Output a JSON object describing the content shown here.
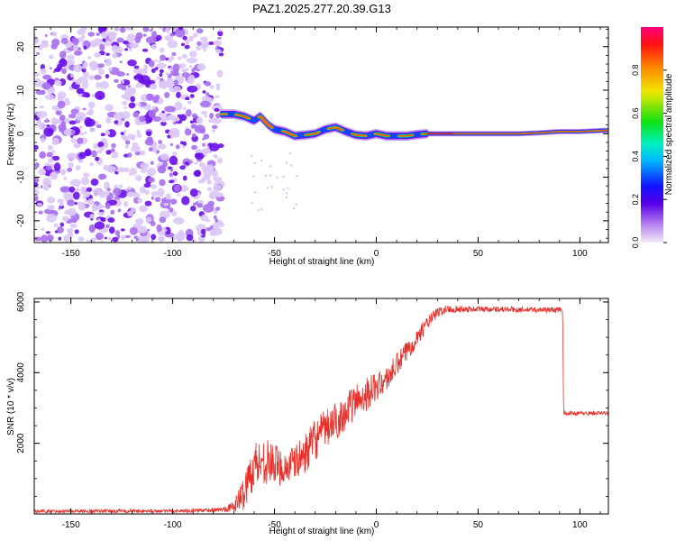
{
  "title": "PAZ1.2025.277.20.39.G13",
  "colors": {
    "snr_line": "#e8302a",
    "axis": "#000000"
  },
  "chart_data": [
    {
      "type": "heatmap",
      "name": "spectrogram",
      "xlabel": "Height of straight line (km)",
      "ylabel": "Frequency (Hz)",
      "xlim": [
        -168,
        114
      ],
      "ylim": [
        -25,
        24.5
      ],
      "xticks": [
        -150,
        -100,
        -50,
        0,
        50,
        100
      ],
      "yticks": [
        -20,
        -10,
        0,
        10,
        20
      ],
      "noise_region_x": [
        -168,
        -76
      ],
      "signal_track": {
        "x": [
          -76,
          -70,
          -65,
          -60,
          -57,
          -53,
          -50,
          -45,
          -40,
          -35,
          -30,
          -25,
          -20,
          -15,
          -10,
          -5,
          0,
          5,
          10,
          15,
          20,
          25,
          30,
          40,
          50,
          60,
          70,
          80,
          90,
          100,
          114
        ],
        "freq": [
          4.5,
          4.5,
          4.0,
          3.0,
          4.0,
          2.0,
          1.0,
          0.5,
          -0.5,
          -0.3,
          0.0,
          1.0,
          1.5,
          0.5,
          -0.3,
          -0.5,
          0.0,
          -0.5,
          -0.5,
          -0.5,
          -0.2,
          0.0,
          0.0,
          0.0,
          0.0,
          0.0,
          0.0,
          0.2,
          0.5,
          0.5,
          0.8
        ]
      },
      "colorbar": {
        "label": "Normalized spectral amplitude",
        "range": [
          0,
          1
        ],
        "ticks": [
          "0.0",
          "0.2",
          "0.4",
          "0.6",
          "0.8"
        ]
      }
    },
    {
      "type": "line",
      "name": "snr",
      "xlabel": "Height of straight line (km)",
      "ylabel": "SNR (10 * v/v)",
      "xlim": [
        -168,
        114
      ],
      "ylim": [
        0,
        6100
      ],
      "xticks": [
        -150,
        -100,
        -50,
        0,
        50,
        100
      ],
      "yticks": [
        2000,
        4000,
        6000
      ],
      "series": [
        {
          "name": "SNR",
          "x": [
            -168,
            -100,
            -76,
            -70,
            -65,
            -60,
            -55,
            -50,
            -45,
            -40,
            -35,
            -30,
            -25,
            -20,
            -15,
            -10,
            -5,
            0,
            5,
            10,
            15,
            20,
            25,
            30,
            35,
            40,
            50,
            60,
            70,
            80,
            90,
            91.5,
            92,
            100,
            114
          ],
          "values": [
            80,
            80,
            120,
            200,
            600,
            1400,
            1500,
            1400,
            1300,
            1450,
            1700,
            2100,
            2400,
            2600,
            2900,
            3200,
            3400,
            3600,
            3800,
            4200,
            4600,
            5000,
            5400,
            5700,
            5800,
            5800,
            5800,
            5800,
            5780,
            5780,
            5780,
            5780,
            2850,
            2850,
            2850
          ],
          "noise": [
            50,
            50,
            60,
            150,
            500,
            700,
            650,
            600,
            500,
            500,
            550,
            600,
            550,
            550,
            500,
            500,
            500,
            400,
            350,
            350,
            300,
            250,
            200,
            150,
            120,
            100,
            80,
            80,
            80,
            80,
            80,
            60,
            60,
            60,
            60
          ]
        }
      ]
    }
  ]
}
